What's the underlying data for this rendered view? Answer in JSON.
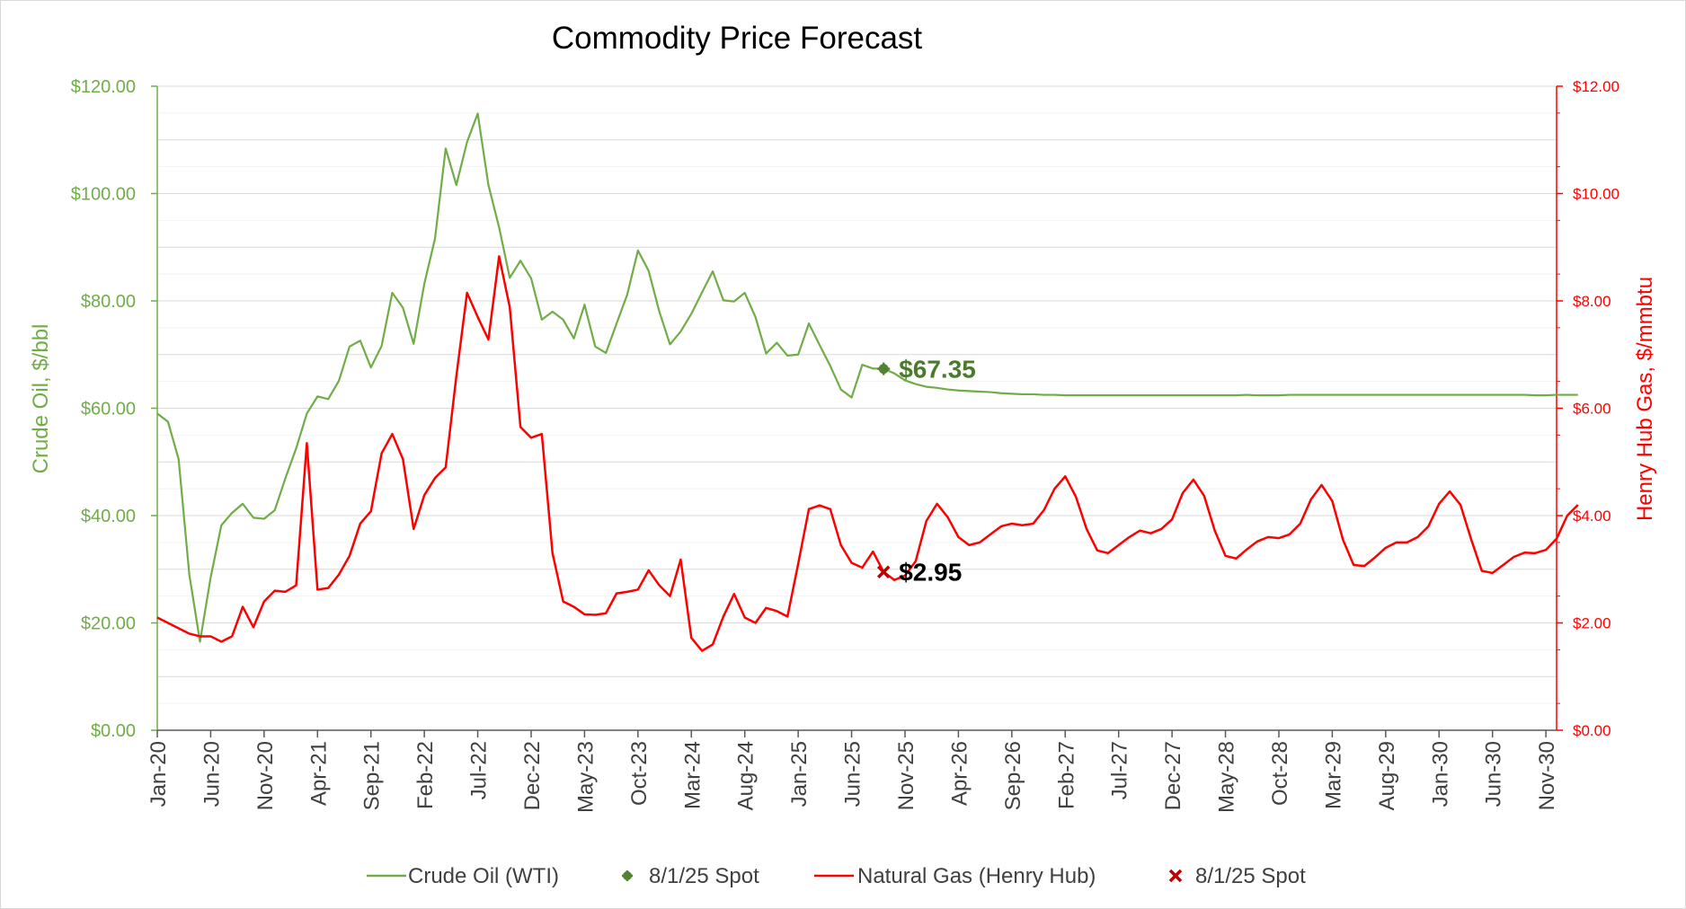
{
  "chart_data": {
    "type": "line",
    "title": "Commodity Price Forecast",
    "ylabel_left": "Crude Oil, $/bbl",
    "ylabel_right": "Henry Hub Gas, $/mmbtu",
    "ylim_left": [
      0,
      120
    ],
    "ylim_right": [
      0,
      12
    ],
    "left_ticks": [
      "$0.00",
      "$20.00",
      "$40.00",
      "$60.00",
      "$80.00",
      "$100.00",
      "$120.00"
    ],
    "right_ticks": [
      "$0.00",
      "$2.00",
      "$4.00",
      "$6.00",
      "$8.00",
      "$10.00",
      "$12.00"
    ],
    "x_start": "Jan-20",
    "x_end": "Dec-30",
    "x_tick_labels": [
      "Jan-20",
      "Jun-20",
      "Nov-20",
      "Apr-21",
      "Sep-21",
      "Feb-22",
      "Jul-22",
      "Dec-22",
      "May-23",
      "Oct-23",
      "Mar-24",
      "Aug-24",
      "Jan-25",
      "Jun-25",
      "Nov-25",
      "Apr-26",
      "Sep-26",
      "Feb-27",
      "Jul-27",
      "Dec-27",
      "May-28",
      "Oct-28",
      "Mar-29",
      "Aug-29",
      "Jan-30",
      "Jun-30",
      "Nov-30"
    ],
    "grid": true,
    "legend_position": "bottom",
    "series": [
      {
        "name": "Crude Oil (WTI)",
        "axis": "left",
        "color": "#70ad47",
        "values": [
          59.0,
          57.5,
          50.5,
          29.0,
          16.5,
          28.5,
          38.2,
          40.5,
          42.2,
          39.6,
          39.4,
          41.0,
          47.0,
          52.5,
          59.0,
          62.2,
          61.7,
          65.1,
          71.5,
          72.6,
          67.6,
          71.6,
          81.5,
          78.7,
          72.0,
          83.2,
          91.6,
          108.4,
          101.6,
          109.6,
          114.9,
          101.6,
          93.7,
          84.3,
          87.5,
          84.2,
          76.5,
          78.0,
          76.5,
          73.0,
          79.3,
          71.5,
          70.3,
          75.8,
          81.2,
          89.4,
          85.6,
          78.0,
          71.9,
          74.3,
          77.6,
          81.6,
          85.5,
          80.1,
          79.9,
          81.5,
          77.0,
          70.2,
          72.2,
          69.8,
          70.0,
          75.8,
          71.8,
          67.9,
          63.5,
          62.0,
          68.1,
          67.4,
          67.35,
          66.5,
          65.2,
          64.5,
          64.0,
          63.8,
          63.5,
          63.3,
          63.2,
          63.1,
          63.0,
          62.8,
          62.7,
          62.6,
          62.6,
          62.5,
          62.5,
          62.4,
          62.4,
          62.4,
          62.4,
          62.4,
          62.4,
          62.4,
          62.4,
          62.4,
          62.4,
          62.4,
          62.4,
          62.4,
          62.4,
          62.4,
          62.4,
          62.4,
          62.5,
          62.4,
          62.4,
          62.4,
          62.5,
          62.5,
          62.5,
          62.5,
          62.5,
          62.5,
          62.5,
          62.5,
          62.5,
          62.5,
          62.5,
          62.5,
          62.5,
          62.5,
          62.5,
          62.5,
          62.5,
          62.5,
          62.5,
          62.5,
          62.5,
          62.5,
          62.5,
          62.4,
          62.4,
          62.5,
          62.5,
          62.5
        ]
      },
      {
        "name": "Natural Gas (Henry Hub)",
        "axis": "right",
        "color": "#ff0000",
        "values": [
          2.1,
          2.0,
          1.9,
          1.8,
          1.75,
          1.75,
          1.65,
          1.75,
          2.3,
          1.92,
          2.4,
          2.6,
          2.58,
          2.7,
          5.35,
          2.62,
          2.65,
          2.9,
          3.25,
          3.85,
          4.08,
          5.16,
          5.52,
          5.05,
          3.75,
          4.38,
          4.7,
          4.9,
          6.6,
          8.15,
          7.7,
          7.28,
          8.83,
          7.88,
          5.65,
          5.45,
          5.52,
          3.3,
          2.4,
          2.3,
          2.16,
          2.15,
          2.18,
          2.55,
          2.58,
          2.62,
          2.98,
          2.7,
          2.5,
          3.18,
          1.72,
          1.48,
          1.6,
          2.12,
          2.54,
          2.1,
          2.0,
          2.28,
          2.22,
          2.12,
          3.1,
          4.12,
          4.19,
          4.12,
          3.45,
          3.12,
          3.03,
          3.33,
          2.95,
          2.8,
          2.88,
          3.15,
          3.9,
          4.22,
          3.97,
          3.6,
          3.45,
          3.5,
          3.65,
          3.8,
          3.85,
          3.82,
          3.85,
          4.1,
          4.5,
          4.73,
          4.35,
          3.75,
          3.35,
          3.3,
          3.45,
          3.6,
          3.72,
          3.67,
          3.75,
          3.93,
          4.42,
          4.67,
          4.37,
          3.72,
          3.25,
          3.2,
          3.37,
          3.52,
          3.6,
          3.58,
          3.65,
          3.85,
          4.3,
          4.57,
          4.27,
          3.55,
          3.08,
          3.06,
          3.22,
          3.4,
          3.5,
          3.5,
          3.6,
          3.8,
          4.22,
          4.45,
          4.2,
          3.56,
          2.97,
          2.93,
          3.08,
          3.23,
          3.31,
          3.3,
          3.36,
          3.57,
          4.0,
          4.2
        ]
      }
    ],
    "spot_points": [
      {
        "label": "$67.35",
        "legend": "8/1/25 Spot",
        "axis": "left",
        "month_index": 68,
        "value": 67.35,
        "color": "#4a7a2c",
        "marker_color": "#548235"
      },
      {
        "label": "$2.95",
        "legend": "8/1/25 Spot",
        "axis": "right",
        "month_index": 68,
        "value": 2.95,
        "color": "#000000",
        "marker_color": "#c00000"
      }
    ]
  }
}
